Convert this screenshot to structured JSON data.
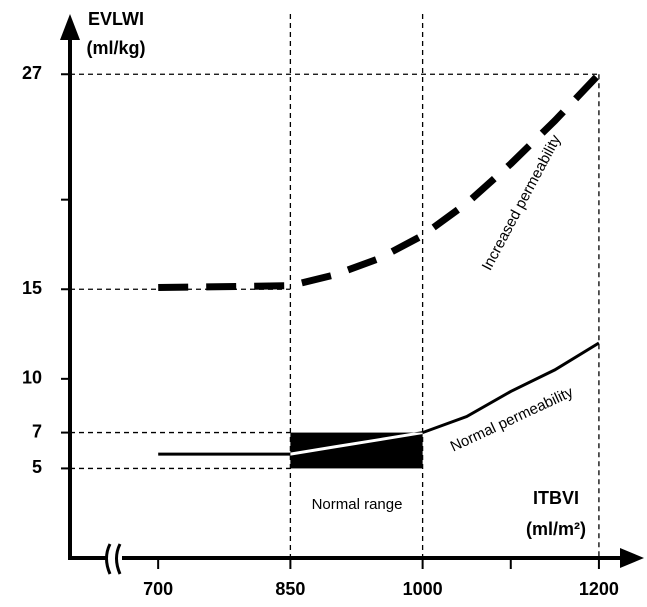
{
  "chart_data": {
    "type": "line",
    "y_label": [
      "EVLWI",
      "(ml/kg)"
    ],
    "x_label": [
      "ITBVI",
      "(ml/m²)"
    ],
    "x": [
      700,
      850,
      900,
      950,
      1000,
      1050,
      1100,
      1150,
      1200
    ],
    "series": [
      {
        "name": "Normal permeability",
        "color": "#000000",
        "style": "solid",
        "values": [
          5.8,
          5.8,
          6.2,
          6.6,
          7.0,
          7.9,
          9.3,
          10.5,
          12.0
        ]
      },
      {
        "name": "Increased permeability",
        "color": "#000000",
        "style": "dashed",
        "values": [
          15.1,
          15.2,
          15.8,
          16.7,
          18.0,
          19.8,
          22.0,
          24.4,
          27.0
        ]
      }
    ],
    "region": {
      "label": "Normal range",
      "x": [
        850,
        1000
      ],
      "y": [
        5,
        7
      ],
      "color": "#000000"
    },
    "guides": [
      {
        "x": 850
      },
      {
        "x": 1000
      },
      {
        "x": 1200,
        "from": 27
      },
      {
        "y": 27,
        "to": 1200
      },
      {
        "y": 15,
        "to": 850
      },
      {
        "y": 7,
        "to": 850
      },
      {
        "y": 5,
        "to": 850
      }
    ],
    "xlim": [
      600,
      1250
    ],
    "ylim": [
      0,
      30
    ],
    "xticks": [
      700,
      850,
      1000,
      1200
    ],
    "xticks_minor": [
      1100
    ],
    "yticks": [
      5,
      7,
      10,
      15,
      27
    ],
    "yticks_minor": [
      20
    ],
    "grid": false
  }
}
